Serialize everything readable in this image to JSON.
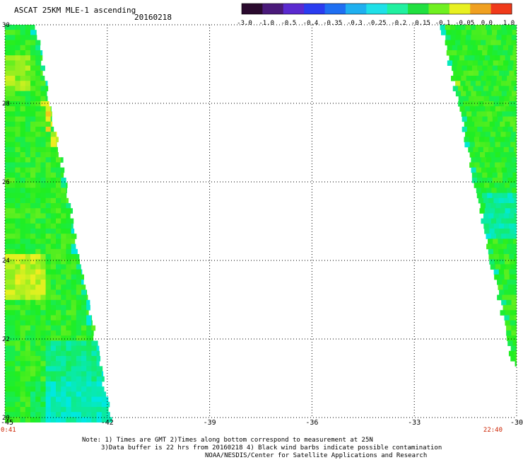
{
  "header": {
    "product_title": "ASCAT 25KM MLE-1 ascending",
    "date": "20160218"
  },
  "colorbar": {
    "labels": [
      "-3.0",
      "-1.0",
      "-0.5",
      "-0.4",
      "-0.35",
      "-0.3",
      "-0.25",
      "-0.2",
      "-0.15",
      "-0.1",
      "-0.05",
      "0.0",
      "1.0"
    ],
    "colors": [
      "#2a0a2e",
      "#4a1a7a",
      "#5a2ad0",
      "#2a3cf0",
      "#1f6ff2",
      "#1fb0f0",
      "#1fe0e8",
      "#20f0a0",
      "#20e040",
      "#70f020",
      "#e8f020",
      "#f0a020",
      "#f03a1a"
    ]
  },
  "map": {
    "lon_labels": [
      "-45",
      "-42",
      "-39",
      "-36",
      "-33",
      "-30"
    ],
    "lat_labels": [
      "30",
      "28",
      "26",
      "24",
      "22",
      "20"
    ],
    "lon_range": [
      -45,
      -30
    ],
    "lat_range": [
      20,
      30
    ],
    "grid": true,
    "time_left": "0:41",
    "time_right": "22:40",
    "field_colors": {
      "low": "#00e8e0",
      "mid": "#20ee20",
      "high": "#f0f020",
      "peak": "#f0a018"
    }
  },
  "footer": {
    "line1": "Note: 1) Times are GMT 2)Times along bottom correspond to measurement at 25N",
    "line2": "3)Data buffer is 22 hrs from 20160218 4) Black wind barbs indicate possible contamination",
    "line3": "NOAA/NESDIS/Center for Satellite Applications and Research"
  }
}
